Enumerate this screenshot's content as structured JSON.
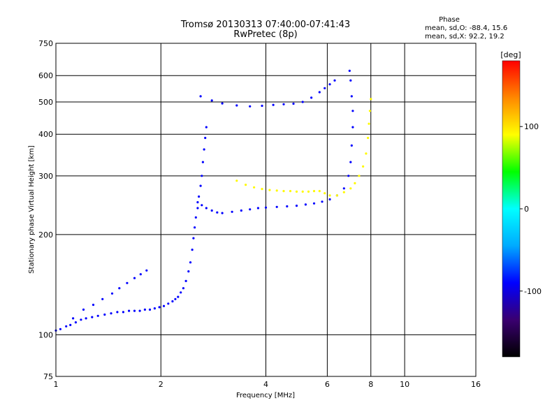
{
  "chart_data": {
    "type": "scatter",
    "title": "Tromsø 20130313 07:40:00-07:41:43",
    "subtitle": "RwPretec (8p)",
    "xlabel": "Frequency [MHz]",
    "ylabel": "Stationary phase Virtual Height [km]",
    "x_scale": "log",
    "y_scale": "log",
    "xlim": [
      1,
      16
    ],
    "ylim": [
      75,
      750
    ],
    "x_ticks": [
      "1",
      "2",
      "4",
      "6",
      "8",
      "10",
      "16"
    ],
    "y_ticks": [
      "75",
      "100",
      "200",
      "300",
      "400",
      "500",
      "600",
      "750"
    ],
    "grid": true,
    "stats": {
      "heading": "Phase",
      "line_o": "mean, sd,O: -88.4, 15.6",
      "line_x": "mean, sd,X:  92.2, 19.2"
    },
    "colorbar": {
      "label": "[deg]",
      "ticks": [
        "100",
        "0",
        "-100"
      ],
      "range": [
        -180,
        180
      ],
      "colors": [
        "#000000",
        "#3a0070",
        "#0000ff",
        "#00aaff",
        "#00ffff",
        "#00ff00",
        "#ffff00",
        "#ff8800",
        "#ff0000"
      ]
    },
    "series": [
      {
        "mode": "O",
        "phase_deg": -90,
        "points": [
          [
            1.0,
            103
          ],
          [
            1.03,
            104
          ],
          [
            1.07,
            106
          ],
          [
            1.1,
            107
          ],
          [
            1.14,
            109
          ],
          [
            1.18,
            111
          ],
          [
            1.22,
            112
          ],
          [
            1.27,
            113
          ],
          [
            1.32,
            114
          ],
          [
            1.38,
            115
          ],
          [
            1.44,
            116
          ],
          [
            1.5,
            117
          ],
          [
            1.56,
            117
          ],
          [
            1.62,
            118
          ],
          [
            1.68,
            118
          ],
          [
            1.74,
            118
          ],
          [
            1.8,
            119
          ],
          [
            1.86,
            119
          ],
          [
            1.92,
            120
          ],
          [
            1.98,
            121
          ],
          [
            2.04,
            122
          ],
          [
            2.1,
            124
          ],
          [
            2.16,
            126
          ],
          [
            2.2,
            128
          ],
          [
            2.24,
            130
          ],
          [
            2.28,
            134
          ],
          [
            2.32,
            138
          ],
          [
            2.36,
            145
          ],
          [
            2.4,
            155
          ],
          [
            2.43,
            165
          ],
          [
            2.46,
            180
          ],
          [
            2.48,
            195
          ],
          [
            2.5,
            210
          ],
          [
            2.52,
            225
          ],
          [
            2.55,
            240
          ],
          [
            2.57,
            260
          ],
          [
            2.6,
            280
          ],
          [
            2.62,
            300
          ],
          [
            2.64,
            330
          ],
          [
            2.66,
            360
          ],
          [
            2.68,
            390
          ],
          [
            2.7,
            420
          ],
          [
            1.12,
            112
          ],
          [
            1.2,
            119
          ],
          [
            1.28,
            123
          ],
          [
            1.36,
            128
          ],
          [
            1.45,
            133
          ],
          [
            1.52,
            138
          ],
          [
            1.6,
            143
          ],
          [
            1.68,
            148
          ],
          [
            1.75,
            152
          ],
          [
            1.82,
            156
          ],
          [
            2.55,
            250
          ],
          [
            2.62,
            245
          ],
          [
            2.7,
            240
          ],
          [
            2.8,
            236
          ],
          [
            2.9,
            233
          ],
          [
            3.0,
            232
          ],
          [
            3.2,
            234
          ],
          [
            3.4,
            236
          ],
          [
            3.6,
            238
          ],
          [
            3.8,
            240
          ],
          [
            4.0,
            241
          ],
          [
            4.3,
            242
          ],
          [
            4.6,
            243
          ],
          [
            4.9,
            244
          ],
          [
            5.2,
            246
          ],
          [
            5.5,
            248
          ],
          [
            5.8,
            251
          ],
          [
            6.1,
            255
          ],
          [
            6.4,
            262
          ],
          [
            6.7,
            275
          ],
          [
            6.9,
            300
          ],
          [
            7.0,
            330
          ],
          [
            7.05,
            370
          ],
          [
            7.1,
            420
          ],
          [
            7.1,
            470
          ],
          [
            7.05,
            520
          ],
          [
            7.0,
            580
          ],
          [
            6.95,
            620
          ],
          [
            2.6,
            520
          ],
          [
            2.8,
            505
          ],
          [
            3.0,
            495
          ],
          [
            3.3,
            488
          ],
          [
            3.6,
            485
          ],
          [
            3.9,
            487
          ],
          [
            4.2,
            490
          ],
          [
            4.5,
            492
          ],
          [
            4.8,
            494
          ],
          [
            5.1,
            500
          ],
          [
            5.4,
            515
          ],
          [
            5.7,
            535
          ],
          [
            5.9,
            550
          ],
          [
            6.1,
            565
          ],
          [
            6.3,
            580
          ]
        ]
      },
      {
        "mode": "X",
        "phase_deg": 92,
        "points": [
          [
            3.3,
            290
          ],
          [
            3.5,
            282
          ],
          [
            3.7,
            277
          ],
          [
            3.9,
            274
          ],
          [
            4.1,
            272
          ],
          [
            4.3,
            271
          ],
          [
            4.5,
            270
          ],
          [
            4.7,
            270
          ],
          [
            4.9,
            269
          ],
          [
            5.1,
            269
          ],
          [
            5.3,
            269
          ],
          [
            5.5,
            270
          ],
          [
            5.7,
            270
          ],
          [
            5.9,
            266
          ],
          [
            6.1,
            262
          ],
          [
            6.4,
            262
          ],
          [
            6.7,
            268
          ],
          [
            7.0,
            275
          ],
          [
            7.2,
            285
          ],
          [
            7.4,
            300
          ],
          [
            7.6,
            320
          ],
          [
            7.75,
            350
          ],
          [
            7.85,
            390
          ],
          [
            7.9,
            430
          ],
          [
            7.95,
            470
          ],
          [
            8.0,
            510
          ]
        ]
      }
    ]
  }
}
